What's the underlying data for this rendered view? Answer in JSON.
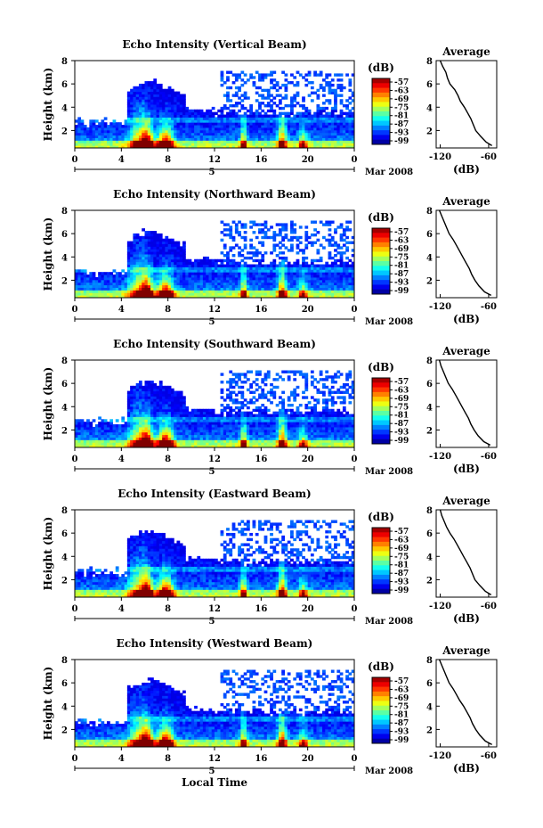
{
  "figure": {
    "xlabel": "Local Time",
    "date_label": "Mar 2008",
    "day_label": "5",
    "colorbar_unit": "(dB)",
    "colorbar_ticks": [
      "-57",
      "-63",
      "-69",
      "-75",
      "-81",
      "-87",
      "-93",
      "-99"
    ],
    "avg_title": "Average",
    "avg_xlabel": "(dB)",
    "ylabel": "Height (km)"
  },
  "chart_data": [
    {
      "type": "heatmap",
      "title": "Echo Intensity (Vertical Beam)",
      "ylabel": "Height (km)",
      "xlabel": "",
      "x_ticks": [
        "0",
        "4",
        "8",
        "12",
        "16",
        "20",
        "0"
      ],
      "y_ticks": [
        "2",
        "4",
        "6",
        "8"
      ],
      "xlim": [
        0,
        24
      ],
      "ylim": [
        0.5,
        8.0
      ],
      "colorbar": {
        "unit": "dB",
        "range": [
          -99,
          -57
        ]
      },
      "profile": {
        "title": "Average",
        "xlabel": "(dB)",
        "xlim": [
          -125,
          -50
        ],
        "ylim": [
          0.5,
          8.0
        ],
        "x_ticks": [
          "-120",
          "-60"
        ],
        "y_ticks": [
          "2",
          "4",
          "6",
          "8"
        ],
        "height_km": [
          0.7,
          1.0,
          1.5,
          2.0,
          2.5,
          3.0,
          3.5,
          4.0,
          4.5,
          5.0,
          5.5,
          6.0,
          6.5,
          7.0,
          7.5,
          8.0
        ],
        "intensity_db": [
          -56,
          -63,
          -70,
          -76,
          -79,
          -82,
          -86,
          -90,
          -95,
          -98,
          -102,
          -108,
          -111,
          -113,
          -117,
          -120
        ]
      }
    },
    {
      "type": "heatmap",
      "title": "Echo Intensity (Northward Beam)",
      "ylabel": "Height (km)",
      "xlabel": "",
      "x_ticks": [
        "0",
        "4",
        "8",
        "12",
        "16",
        "20",
        "0"
      ],
      "y_ticks": [
        "2",
        "4",
        "6",
        "8"
      ],
      "xlim": [
        0,
        24
      ],
      "ylim": [
        0.5,
        8.0
      ],
      "colorbar": {
        "unit": "dB",
        "range": [
          -99,
          -57
        ]
      },
      "profile": {
        "title": "Average",
        "xlabel": "(dB)",
        "xlim": [
          -125,
          -50
        ],
        "ylim": [
          0.5,
          8.0
        ],
        "x_ticks": [
          "-120",
          "-60"
        ],
        "y_ticks": [
          "2",
          "4",
          "6",
          "8"
        ],
        "height_km": [
          0.7,
          1.0,
          1.5,
          2.0,
          2.5,
          3.0,
          3.5,
          4.0,
          4.5,
          5.0,
          5.5,
          6.0,
          6.5,
          7.0,
          7.5,
          8.0
        ],
        "intensity_db": [
          -57,
          -65,
          -72,
          -77,
          -81,
          -84,
          -88,
          -92,
          -96,
          -100,
          -104,
          -109,
          -112,
          -115,
          -118,
          -121
        ]
      }
    },
    {
      "type": "heatmap",
      "title": "Echo Intensity (Southward Beam)",
      "ylabel": "Height (km)",
      "xlabel": "",
      "x_ticks": [
        "0",
        "4",
        "8",
        "12",
        "16",
        "20",
        "0"
      ],
      "y_ticks": [
        "2",
        "4",
        "6",
        "8"
      ],
      "xlim": [
        0,
        24
      ],
      "ylim": [
        0.5,
        8.0
      ],
      "colorbar": {
        "unit": "dB",
        "range": [
          -99,
          -57
        ]
      },
      "profile": {
        "title": "Average",
        "xlabel": "(dB)",
        "xlim": [
          -125,
          -50
        ],
        "ylim": [
          0.5,
          8.0
        ],
        "x_ticks": [
          "-120",
          "-60"
        ],
        "y_ticks": [
          "2",
          "4",
          "6",
          "8"
        ],
        "height_km": [
          0.7,
          1.0,
          1.5,
          2.0,
          2.5,
          3.0,
          3.5,
          4.0,
          4.5,
          5.0,
          5.5,
          6.0,
          6.5,
          7.0,
          7.5,
          8.0
        ],
        "intensity_db": [
          -58,
          -66,
          -73,
          -78,
          -82,
          -85,
          -89,
          -93,
          -97,
          -101,
          -105,
          -110,
          -113,
          -116,
          -119,
          -121
        ]
      }
    },
    {
      "type": "heatmap",
      "title": "Echo Intensity (Eastward Beam)",
      "ylabel": "Height (km)",
      "xlabel": "",
      "x_ticks": [
        "0",
        "4",
        "8",
        "12",
        "16",
        "20",
        "0"
      ],
      "y_ticks": [
        "2",
        "4",
        "6",
        "8"
      ],
      "xlim": [
        0,
        24
      ],
      "ylim": [
        0.5,
        8.0
      ],
      "colorbar": {
        "unit": "dB",
        "range": [
          -99,
          -57
        ]
      },
      "profile": {
        "title": "Average",
        "xlabel": "(dB)",
        "xlim": [
          -125,
          -50
        ],
        "ylim": [
          0.5,
          8.0
        ],
        "x_ticks": [
          "-120",
          "-60"
        ],
        "y_ticks": [
          "2",
          "4",
          "6",
          "8"
        ],
        "height_km": [
          0.7,
          1.0,
          1.5,
          2.0,
          2.5,
          3.0,
          3.5,
          4.0,
          4.5,
          5.0,
          5.5,
          6.0,
          6.5,
          7.0,
          7.5,
          8.0
        ],
        "intensity_db": [
          -57,
          -64,
          -71,
          -77,
          -80,
          -83,
          -87,
          -91,
          -95,
          -99,
          -103,
          -108,
          -112,
          -115,
          -118,
          -120
        ]
      }
    },
    {
      "type": "heatmap",
      "title": "Echo Intensity (Westward Beam)",
      "ylabel": "Height (km)",
      "xlabel": "Local Time",
      "x_ticks": [
        "0",
        "4",
        "8",
        "12",
        "16",
        "20",
        "0"
      ],
      "y_ticks": [
        "2",
        "4",
        "6",
        "8"
      ],
      "xlim": [
        0,
        24
      ],
      "ylim": [
        0.5,
        8.0
      ],
      "colorbar": {
        "unit": "dB",
        "range": [
          -99,
          -57
        ]
      },
      "profile": {
        "title": "Average",
        "xlabel": "(dB)",
        "xlim": [
          -125,
          -50
        ],
        "ylim": [
          0.5,
          8.0
        ],
        "x_ticks": [
          "-120",
          "-60"
        ],
        "y_ticks": [
          "2",
          "4",
          "6",
          "8"
        ],
        "height_km": [
          0.7,
          1.0,
          1.5,
          2.0,
          2.5,
          3.0,
          3.5,
          4.0,
          4.5,
          5.0,
          5.5,
          6.0,
          6.5,
          7.0,
          7.5,
          8.0
        ],
        "intensity_db": [
          -56,
          -64,
          -71,
          -76,
          -80,
          -83,
          -87,
          -91,
          -96,
          -100,
          -104,
          -109,
          -112,
          -115,
          -118,
          -121
        ]
      }
    }
  ]
}
